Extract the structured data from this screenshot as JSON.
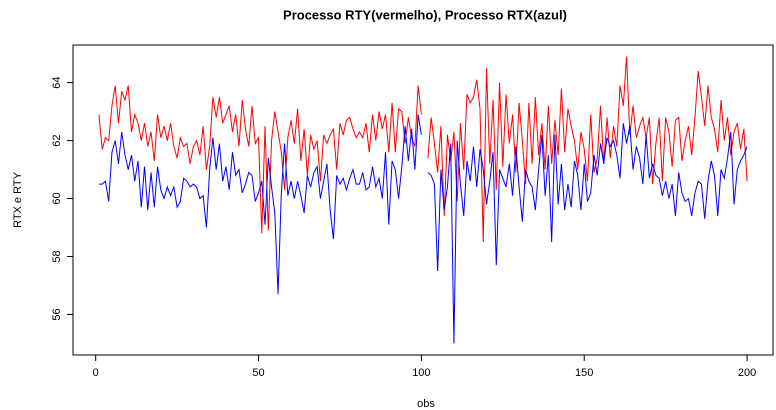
{
  "chart_data": {
    "type": "line",
    "title": "Processo RTY(vermelho), Processo RTX(azul)",
    "x_label": "obs",
    "y_label": "RTX e RTY",
    "x": [
      1,
      2,
      3,
      4,
      5,
      6,
      7,
      8,
      9,
      10,
      11,
      12,
      13,
      14,
      15,
      16,
      17,
      18,
      19,
      20,
      21,
      22,
      23,
      24,
      25,
      26,
      27,
      28,
      29,
      30,
      31,
      32,
      33,
      34,
      35,
      36,
      37,
      38,
      39,
      40,
      41,
      42,
      43,
      44,
      45,
      46,
      47,
      48,
      49,
      50,
      51,
      52,
      53,
      54,
      55,
      56,
      57,
      58,
      59,
      60,
      61,
      62,
      63,
      64,
      65,
      66,
      67,
      68,
      69,
      70,
      71,
      72,
      73,
      74,
      75,
      76,
      77,
      78,
      79,
      80,
      81,
      82,
      83,
      84,
      85,
      86,
      87,
      88,
      89,
      90,
      91,
      92,
      93,
      94,
      95,
      96,
      97,
      98,
      99,
      100,
      101,
      102,
      103,
      104,
      105,
      106,
      107,
      108,
      109,
      110,
      111,
      112,
      113,
      114,
      115,
      116,
      117,
      118,
      119,
      120,
      121,
      122,
      123,
      124,
      125,
      126,
      127,
      128,
      129,
      130,
      131,
      132,
      133,
      134,
      135,
      136,
      137,
      138,
      139,
      140,
      141,
      142,
      143,
      144,
      145,
      146,
      147,
      148,
      149,
      150,
      151,
      152,
      153,
      154,
      155,
      156,
      157,
      158,
      159,
      160,
      161,
      162,
      163,
      164,
      165,
      166,
      167,
      168,
      169,
      170,
      171,
      172,
      173,
      174,
      175,
      176,
      177,
      178,
      179,
      180,
      181,
      182,
      183,
      184,
      185,
      186,
      187,
      188,
      189,
      190,
      191,
      192,
      193,
      194,
      195,
      196,
      197,
      198,
      199,
      200
    ],
    "series": [
      {
        "color": "#ff0000",
        "values": [
          62.9,
          61.7,
          62.1,
          62.0,
          63.2,
          63.9,
          62.6,
          63.7,
          63.4,
          63.9,
          62.3,
          62.9,
          62.6,
          62.0,
          62.6,
          61.8,
          62.3,
          61.3,
          62.9,
          62.1,
          62.5,
          62.0,
          62.6,
          61.8,
          61.4,
          62.1,
          61.8,
          61.9,
          61.2,
          61.8,
          62.0,
          61.5,
          62.5,
          61.0,
          61.8,
          63.5,
          62.8,
          63.5,
          62.6,
          62.9,
          63.2,
          62.3,
          62.9,
          61.8,
          63.4,
          62.4,
          61.8,
          63.2,
          61.9,
          62.1,
          58.8,
          62.5,
          58.9,
          62.0,
          63.0,
          62.3,
          61.6,
          60.3,
          62.1,
          62.7,
          61.9,
          63.1,
          61.3,
          62.4,
          60.8,
          62.2,
          61.7,
          62.0,
          60.6,
          62.2,
          61.9,
          62.2,
          62.4,
          61.0,
          62.6,
          62.2,
          62.7,
          62.8,
          62.4,
          62.1,
          62.3,
          62.1,
          62.6,
          61.6,
          62.9,
          62.0,
          63.0,
          62.4,
          62.9,
          61.6,
          63.3,
          61.6,
          63.1,
          63.0,
          61.9,
          62.8,
          62.1,
          61.8,
          63.9,
          62.9,
          null,
          61.4,
          62.8,
          61.9,
          60.9,
          62.5,
          59.4,
          62.2,
          61.3,
          62.3,
          59.9,
          62.6,
          61.0,
          63.6,
          63.3,
          63.5,
          64.1,
          63.1,
          58.5,
          64.5,
          61.2,
          63.4,
          60.3,
          64.0,
          61.1,
          63.6,
          61.9,
          62.9,
          60.9,
          63.3,
          62.0,
          60.5,
          63.3,
          61.2,
          63.5,
          61.5,
          62.6,
          61.0,
          63.2,
          61.2,
          62.7,
          61.5,
          63.8,
          61.6,
          63.1,
          62.5,
          62.0,
          61.0,
          62.3,
          61.7,
          60.6,
          62.9,
          60.9,
          61.4,
          63.2,
          61.2,
          62.8,
          61.4,
          62.5,
          61.8,
          63.9,
          63.2,
          64.9,
          62.2,
          63.2,
          62.1,
          62.5,
          62.8,
          62.1,
          62.8,
          60.5,
          61.9,
          62.8,
          60.6,
          62.8,
          62.3,
          61.1,
          62.7,
          62.8,
          61.3,
          62.0,
          62.5,
          61.5,
          62.8,
          64.4,
          63.5,
          62.5,
          63.9,
          62.8,
          62.4,
          61.6,
          63.4,
          62.0,
          62.8,
          61.5,
          62.3,
          62.6,
          61.7,
          62.4,
          60.6
        ]
      },
      {
        "color": "#0000ff",
        "values": [
          60.5,
          60.5,
          60.6,
          59.9,
          61.6,
          62.0,
          61.2,
          62.3,
          61.5,
          61.0,
          61.5,
          60.6,
          61.3,
          59.7,
          61.1,
          59.6,
          60.9,
          59.7,
          61.1,
          60.3,
          60.0,
          60.4,
          60.1,
          60.4,
          59.7,
          59.9,
          60.7,
          60.6,
          60.4,
          60.5,
          60.4,
          60.0,
          60.1,
          59.0,
          61.0,
          62.1,
          61.0,
          61.9,
          60.6,
          61.1,
          60.3,
          61.6,
          60.8,
          61.0,
          60.2,
          60.5,
          60.9,
          60.8,
          59.9,
          60.2,
          60.6,
          59.1,
          61.4,
          60.4,
          59.5,
          56.7,
          60.2,
          61.9,
          60.1,
          60.6,
          60.0,
          60.6,
          60.1,
          59.5,
          60.8,
          60.4,
          60.9,
          61.1,
          60.0,
          60.6,
          61.2,
          59.6,
          58.6,
          60.8,
          60.5,
          60.7,
          60.3,
          60.7,
          61.0,
          60.5,
          60.5,
          60.9,
          60.3,
          60.4,
          61.1,
          60.4,
          60.7,
          60.0,
          61.6,
          59.1,
          61.3,
          61.0,
          60.0,
          61.1,
          62.5,
          61.3,
          62.4,
          61.0,
          62.9,
          62.2,
          null,
          60.9,
          60.8,
          60.5,
          57.5,
          61.0,
          59.6,
          60.4,
          61.9,
          55.0,
          62.0,
          60.5,
          59.4,
          61.3,
          60.6,
          61.8,
          60.4,
          61.7,
          61.0,
          59.8,
          60.6,
          61.6,
          57.7,
          61.0,
          60.7,
          60.4,
          61.2,
          60.1,
          61.8,
          60.4,
          59.2,
          61.0,
          60.6,
          60.4,
          59.6,
          61.0,
          62.2,
          60.1,
          61.5,
          58.5,
          62.2,
          59.8,
          61.2,
          59.6,
          60.5,
          59.7,
          61.3,
          60.8,
          59.6,
          61.2,
          59.9,
          60.2,
          61.5,
          60.8,
          61.9,
          61.2,
          62.1,
          61.8,
          62.0,
          61.5,
          60.7,
          62.6,
          61.9,
          62.5,
          61.0,
          61.8,
          61.4,
          60.5,
          62.2,
          60.7,
          61.2,
          60.8,
          60.7,
          60.1,
          60.6,
          60.0,
          60.5,
          59.4,
          60.9,
          60.2,
          59.9,
          60.0,
          59.4,
          60.2,
          60.6,
          60.5,
          59.3,
          60.6,
          61.3,
          60.8,
          59.4,
          61.0,
          60.7,
          61.4,
          62.3,
          59.8,
          61.0,
          61.3,
          61.5,
          61.8
        ]
      }
    ],
    "xlim": [
      -6.96,
      207.96
    ],
    "xticks": [
      0,
      50,
      100,
      150,
      200
    ],
    "ylim": [
      54.6,
      65.3
    ],
    "yticks": [
      56,
      58,
      60,
      62,
      64
    ]
  }
}
